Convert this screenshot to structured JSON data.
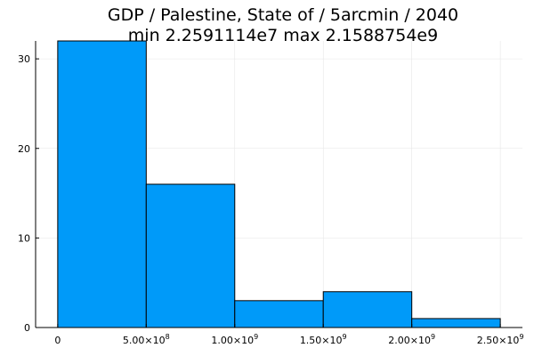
{
  "chart_data": {
    "type": "bar",
    "title_line1": "GDP / Palestine, State of / 5arcmin / 2040",
    "title_line2": "min 2.2591114e7  max 2.1588754e9",
    "bins": [
      {
        "start": 0,
        "end": 500000000,
        "count": 32
      },
      {
        "start": 500000000,
        "end": 1000000000,
        "count": 16
      },
      {
        "start": 1000000000,
        "end": 1500000000,
        "count": 3
      },
      {
        "start": 1500000000,
        "end": 2000000000,
        "count": 4
      },
      {
        "start": 2000000000,
        "end": 2500000000,
        "count": 1
      }
    ],
    "xlim": [
      -125000000,
      2625000000
    ],
    "ylim": [
      0,
      32
    ],
    "x_ticks": [
      {
        "value": 0,
        "mantissa": "0",
        "exponent": ""
      },
      {
        "value": 500000000,
        "mantissa": "5.00×10",
        "exponent": "8"
      },
      {
        "value": 1000000000,
        "mantissa": "1.00×10",
        "exponent": "9"
      },
      {
        "value": 1500000000,
        "mantissa": "1.50×10",
        "exponent": "9"
      },
      {
        "value": 2000000000,
        "mantissa": "2.00×10",
        "exponent": "9"
      },
      {
        "value": 2500000000,
        "mantissa": "2.50×10",
        "exponent": "9"
      }
    ],
    "y_ticks": [
      0,
      10,
      20,
      30
    ],
    "grid": true,
    "legend": "none",
    "bar_color": "#009af9"
  }
}
